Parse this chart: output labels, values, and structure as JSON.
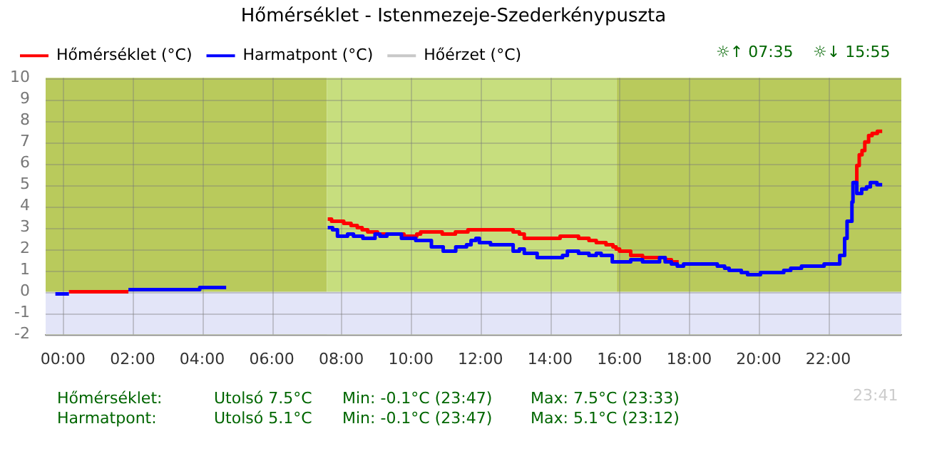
{
  "chart_data": {
    "type": "step",
    "title": "Hőmérséklet - Istenmezeje-Szederkénypuszta",
    "xlim": [
      -0.5,
      24.1
    ],
    "ylim": [
      -2,
      10
    ],
    "xticks": [
      {
        "value": 0,
        "label": "00:00"
      },
      {
        "value": 2,
        "label": "02:00"
      },
      {
        "value": 4,
        "label": "04:00"
      },
      {
        "value": 6,
        "label": "06:00"
      },
      {
        "value": 8,
        "label": "08:00"
      },
      {
        "value": 10,
        "label": "10:00"
      },
      {
        "value": 12,
        "label": "12:00"
      },
      {
        "value": 14,
        "label": "14:00"
      },
      {
        "value": 16,
        "label": "16:00"
      },
      {
        "value": 18,
        "label": "18:00"
      },
      {
        "value": 20,
        "label": "20:00"
      },
      {
        "value": 22,
        "label": "22:00"
      }
    ],
    "yticks": [
      -2,
      -1,
      0,
      1,
      2,
      3,
      4,
      5,
      6,
      7,
      8,
      9,
      10
    ],
    "grid": true,
    "legend": "top left",
    "bands": [
      {
        "axis": "x",
        "from": -0.5,
        "to": 7.583,
        "color": "#b9ca5c"
      },
      {
        "axis": "x",
        "from": 7.583,
        "to": 15.917,
        "color": "#c7de7e"
      },
      {
        "axis": "x",
        "from": 15.917,
        "to": 24.1,
        "color": "#b9ca5c"
      },
      {
        "axis": "y",
        "from": -2,
        "to": 0,
        "color": "#e3e5f8"
      }
    ],
    "series": [
      {
        "name": "Hőmérséklet (°C)",
        "color": "#ff0000",
        "x": [
          0.17,
          1.88,
          6.0,
          7.61,
          7.72,
          8.07,
          8.28,
          8.46,
          8.6,
          8.76,
          9.04,
          9.8,
          10.17,
          10.28,
          10.9,
          11.28,
          11.64,
          12.94,
          13.12,
          13.26,
          14.29,
          14.82,
          15.12,
          15.33,
          15.61,
          15.81,
          15.9,
          16.0,
          16.32,
          16.66,
          17.31,
          17.49,
          17.7,
          18.0,
          22.71,
          22.82,
          22.89,
          22.97,
          23.05,
          23.16,
          23.26,
          23.41,
          23.55
        ],
        "values": [
          0.0,
          0.0,
          null,
          3.4,
          3.3,
          3.2,
          3.1,
          3.0,
          2.9,
          2.8,
          2.7,
          2.6,
          2.7,
          2.8,
          2.7,
          2.8,
          2.9,
          2.8,
          2.7,
          2.5,
          2.6,
          2.5,
          2.4,
          2.3,
          2.2,
          2.1,
          2.0,
          1.9,
          1.7,
          1.6,
          1.5,
          1.4,
          1.4,
          null,
          5.1,
          5.9,
          6.4,
          6.6,
          7.0,
          7.3,
          7.4,
          7.5,
          7.5
        ]
      },
      {
        "name": "Harmatpont (°C)",
        "color": "#0000ff",
        "x": [
          -0.22,
          0.17,
          1.0,
          1.88,
          3.93,
          4.69,
          6.0,
          7.61,
          7.75,
          7.89,
          8.18,
          8.35,
          8.62,
          8.97,
          9.11,
          9.31,
          9.73,
          10.14,
          10.59,
          10.93,
          11.29,
          11.6,
          11.73,
          11.87,
          11.97,
          12.29,
          12.94,
          13.12,
          13.26,
          13.63,
          14.36,
          14.5,
          14.82,
          15.12,
          15.33,
          15.47,
          15.79,
          16.32,
          16.66,
          17.15,
          17.31,
          17.49,
          17.66,
          17.84,
          18.81,
          19.02,
          19.15,
          19.5,
          19.68,
          20.05,
          20.72,
          20.92,
          21.23,
          21.88,
          22.33,
          22.47,
          22.54,
          22.68,
          22.71,
          22.82,
          22.96,
          23.1,
          23.21,
          23.4,
          23.55
        ],
        "values": [
          -0.1,
          -0.1,
          null,
          0.1,
          0.2,
          0.2,
          null,
          3.0,
          2.9,
          2.6,
          2.7,
          2.6,
          2.5,
          2.7,
          2.6,
          2.7,
          2.5,
          2.4,
          2.1,
          1.9,
          2.1,
          2.2,
          2.4,
          2.5,
          2.3,
          2.2,
          1.9,
          2.0,
          1.8,
          1.6,
          1.7,
          1.9,
          1.8,
          1.7,
          1.8,
          1.7,
          1.4,
          1.5,
          1.4,
          1.6,
          1.4,
          1.3,
          1.2,
          1.3,
          1.2,
          1.1,
          1.0,
          0.9,
          0.8,
          0.9,
          1.0,
          1.1,
          1.2,
          1.3,
          1.7,
          2.5,
          3.3,
          4.2,
          5.1,
          4.6,
          4.8,
          4.9,
          5.1,
          5.0,
          5.0
        ]
      },
      {
        "name": "Hőérzet (°C)",
        "color": "#c8c8c8"
      }
    ],
    "annotations": [
      "☼↑ 07:35",
      "☼↓ 15:55",
      "Hőmérséklet:",
      "Utolsó 7.5°C",
      "Min: -0.1°C (23:47)",
      "Max: 7.5°C (23:33)",
      "Harmatpont:",
      "Utolsó 5.1°C",
      "Min: -0.1°C (23:47)",
      "Max: 5.1°C (23:12)",
      "23:41"
    ]
  }
}
